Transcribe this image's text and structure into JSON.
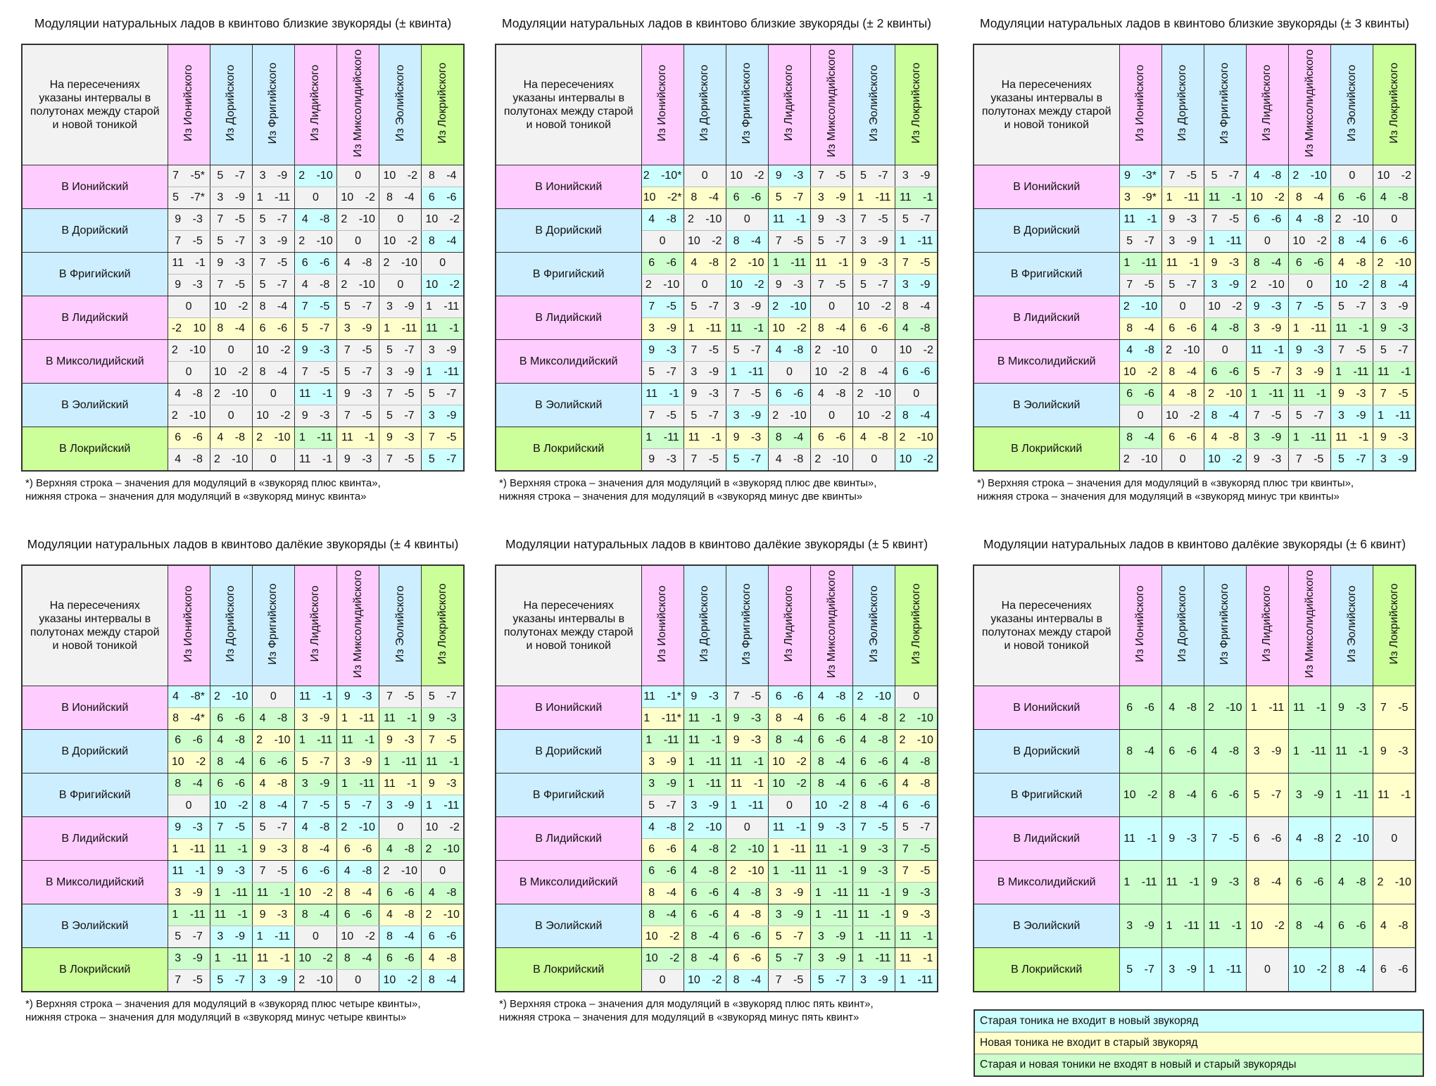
{
  "colors": {
    "pink": "#ffccff",
    "blue": "#cceeff",
    "green_header": "#ccff99",
    "g": "#f2f2f2",
    "c": "#ccffff",
    "y": "#ffffcc",
    "n": "#ccffcc"
  },
  "corner_text": "На пересечениях указаны интервалы в полутонах между старой и новой тоникой",
  "columns": [
    {
      "label": "Из Ионийского",
      "color": "pink"
    },
    {
      "label": "Из Дорийского",
      "color": "blue"
    },
    {
      "label": "Из Фригийского",
      "color": "blue"
    },
    {
      "label": "Из Лидийского",
      "color": "pink"
    },
    {
      "label": "Из Миксолидийского",
      "color": "pink"
    },
    {
      "label": "Из Эолийского",
      "color": "blue"
    },
    {
      "label": "Из Локрийского",
      "color": "green_header"
    }
  ],
  "row_labels": [
    {
      "label": "В Ионийский",
      "color": "pink"
    },
    {
      "label": "В Дорийский",
      "color": "blue"
    },
    {
      "label": "В Фригийский",
      "color": "blue"
    },
    {
      "label": "В Лидийский",
      "color": "pink"
    },
    {
      "label": "В Миксолидийский",
      "color": "pink"
    },
    {
      "label": "В Эолийский",
      "color": "blue"
    },
    {
      "label": "В Локрийский",
      "color": "green_header"
    }
  ],
  "tables": [
    {
      "title": "Модуляции натуральных ладов в квинтово близкие звукоряды (± квинта)",
      "footnote": [
        "*) Верхняя строка – значения для модуляций в «звукоряд плюс квинта»,",
        "нижняя строка – значения для модуляций в «звукоряд минус квинта»"
      ],
      "rows": [
        {
          "top": [
            "7 -5*",
            "5 -7",
            "3 -9",
            "2 -10",
            "0",
            "10 -2",
            "8 -4"
          ],
          "tc": "gggcggg",
          "bottom": [
            "5 -7*",
            "3 -9",
            "1 -11",
            "0",
            "10 -2",
            "8 -4",
            "6 -6"
          ],
          "bc": "ggggggc"
        },
        {
          "top": [
            "9 -3",
            "7 -5",
            "5 -7",
            "4 -8",
            "2 -10",
            "0",
            "10 -2"
          ],
          "tc": "gggcggg",
          "bottom": [
            "7 -5",
            "5 -7",
            "3 -9",
            "2 -10",
            "0",
            "10 -2",
            "8 -4"
          ],
          "bc": "ggggggc"
        },
        {
          "top": [
            "11 -1",
            "9 -3",
            "7 -5",
            "6 -6",
            "4 -8",
            "2 -10",
            "0"
          ],
          "tc": "gggcggg",
          "bottom": [
            "9 -3",
            "7 -5",
            "5 -7",
            "4 -8",
            "2 -10",
            "0",
            "10 -2"
          ],
          "bc": "ggggggc"
        },
        {
          "top": [
            "0",
            "10 -2",
            "8 -4",
            "7 -5",
            "5 -7",
            "3 -9",
            "1 -11"
          ],
          "tc": "gggcggg",
          "bottom": [
            "-2 10",
            "8 -4",
            "6 -6",
            "5 -7",
            "3 -9",
            "1 -11",
            "11 -1"
          ],
          "bc": "yyyyyyn"
        },
        {
          "top": [
            "2 -10",
            "0",
            "10 -2",
            "9 -3",
            "7 -5",
            "5 -7",
            "3 -9"
          ],
          "tc": "gggcggg",
          "bottom": [
            "0",
            "10 -2",
            "8 -4",
            "7 -5",
            "5 -7",
            "3 -9",
            "1 -11"
          ],
          "bc": "ggggggc"
        },
        {
          "top": [
            "4 -8",
            "2 -10",
            "0",
            "11 -1",
            "9 -3",
            "7 -5",
            "5 -7"
          ],
          "tc": "gggcggg",
          "bottom": [
            "2 -10",
            "0",
            "10 -2",
            "9 -3",
            "7 -5",
            "5 -7",
            "3 -9"
          ],
          "bc": "ggggggc"
        },
        {
          "top": [
            "6 -6",
            "4 -8",
            "2 -10",
            "1 -11",
            "11 -1",
            "9 -3",
            "7 -5"
          ],
          "tc": "yyynyyy",
          "bottom": [
            "4 -8",
            "2 -10",
            "0",
            "11 -1",
            "9 -3",
            "7 -5",
            "5 -7"
          ],
          "bc": "ggggggc"
        }
      ]
    },
    {
      "title": "Модуляции натуральных ладов в квинтово близкие звукоряды (± 2 квинты)",
      "footnote": [
        "*) Верхняя строка – значения для модуляций в «звукоряд плюс две квинты»,",
        "нижняя строка – значения для модуляций в «звукоряд минус две квинты»"
      ],
      "rows": [
        {
          "top": [
            "2 -10*",
            "0",
            "10 -2",
            "9 -3",
            "7 -5",
            "5 -7",
            "3 -9"
          ],
          "tc": "cggcggg",
          "bottom": [
            "10 -2*",
            "8 -4",
            "6 -6",
            "5 -7",
            "3 -9",
            "1 -11",
            "11 -1"
          ],
          "bc": "yynyyyn"
        },
        {
          "top": [
            "4 -8",
            "2 -10",
            "0",
            "11 -1",
            "9 -3",
            "7 -5",
            "5 -7"
          ],
          "tc": "cggcggg",
          "bottom": [
            "0",
            "10 -2",
            "8 -4",
            "7 -5",
            "5 -7",
            "3 -9",
            "1 -11"
          ],
          "bc": "ggcgggc"
        },
        {
          "top": [
            "6 -6",
            "4 -8",
            "2 -10",
            "1 -11",
            "11 -1",
            "9 -3",
            "7 -5"
          ],
          "tc": "nyynyyy",
          "bottom": [
            "2 -10",
            "0",
            "10 -2",
            "9 -3",
            "7 -5",
            "5 -7",
            "3 -9"
          ],
          "bc": "ggcgggc"
        },
        {
          "top": [
            "7 -5",
            "5 -7",
            "3 -9",
            "2 -10",
            "0",
            "10 -2",
            "8 -4"
          ],
          "tc": "cggcggg",
          "bottom": [
            "3 -9",
            "1 -11",
            "11 -1",
            "10 -2",
            "8 -4",
            "6 -6",
            "4 -8"
          ],
          "bc": "yynyyyn"
        },
        {
          "top": [
            "9 -3",
            "7 -5",
            "5 -7",
            "4 -8",
            "2 -10",
            "0",
            "10 -2"
          ],
          "tc": "cggcggg",
          "bottom": [
            "5 -7",
            "3 -9",
            "1 -11",
            "0",
            "10 -2",
            "8 -4",
            "6 -6"
          ],
          "bc": "ggcgggc"
        },
        {
          "top": [
            "11 -1",
            "9 -3",
            "7 -5",
            "6 -6",
            "4 -8",
            "2 -10",
            "0"
          ],
          "tc": "cggcggg",
          "bottom": [
            "7 -5",
            "5 -7",
            "3 -9",
            "2 -10",
            "0",
            "10 -2",
            "8 -4"
          ],
          "bc": "ggcgggc"
        },
        {
          "top": [
            "1 -11",
            "11 -1",
            "9 -3",
            "8 -4",
            "6 -6",
            "4 -8",
            "2 -10"
          ],
          "tc": "nyynyyy",
          "bottom": [
            "9 -3",
            "7 -5",
            "5 -7",
            "4 -8",
            "2 -10",
            "0",
            "10 -2"
          ],
          "bc": "ggcgggc"
        }
      ]
    },
    {
      "title": "Модуляции натуральных ладов в квинтово близкие звукоряды (± 3 квинты)",
      "footnote": [
        "*) Верхняя строка – значения для модуляций в «звукоряд плюс три квинты»,",
        "нижняя строка – значения для модуляций в «звукоряд минус три квинты»"
      ],
      "rows": [
        {
          "top": [
            "9 -3*",
            "7 -5",
            "5 -7",
            "4 -8",
            "2 -10",
            "0",
            "10 -2"
          ],
          "tc": "cggccgg",
          "bottom": [
            "3 -9*",
            "1 -11",
            "11 -1",
            "10 -2",
            "8 -4",
            "6 -6",
            "4 -8"
          ],
          "bc": "yynyynn"
        },
        {
          "top": [
            "11 -1",
            "9 -3",
            "7 -5",
            "6 -6",
            "4 -8",
            "2 -10",
            "0"
          ],
          "tc": "cggccgg",
          "bottom": [
            "5 -7",
            "3 -9",
            "1 -11",
            "0",
            "10 -2",
            "8 -4",
            "6 -6"
          ],
          "bc": "ggcggcc"
        },
        {
          "top": [
            "1 -11",
            "11 -1",
            "9 -3",
            "8 -4",
            "6 -6",
            "4 -8",
            "2 -10"
          ],
          "tc": "nyynnyy",
          "bottom": [
            "7 -5",
            "5 -7",
            "3 -9",
            "2 -10",
            "0",
            "10 -2",
            "8 -4"
          ],
          "bc": "ggcggcc"
        },
        {
          "top": [
            "2 -10",
            "0",
            "10 -2",
            "9 -3",
            "7 -5",
            "5 -7",
            "3 -9"
          ],
          "tc": "cggccgg",
          "bottom": [
            "8 -4",
            "6 -6",
            "4 -8",
            "3 -9",
            "1 -11",
            "11 -1",
            "9 -3"
          ],
          "bc": "yynyynn"
        },
        {
          "top": [
            "4 -8",
            "2 -10",
            "0",
            "11 -1",
            "9 -3",
            "7 -5",
            "5 -7"
          ],
          "tc": "cggccgg",
          "bottom": [
            "10 -2",
            "8 -4",
            "6 -6",
            "5 -7",
            "3 -9",
            "1 -11",
            "11 -1"
          ],
          "bc": "yynyynn"
        },
        {
          "top": [
            "6 -6",
            "4 -8",
            "2 -10",
            "1 -11",
            "11 -1",
            "9 -3",
            "7 -5"
          ],
          "tc": "nyynnyy",
          "bottom": [
            "0",
            "10 -2",
            "8 -4",
            "7 -5",
            "5 -7",
            "3 -9",
            "1 -11"
          ],
          "bc": "ggcggcc"
        },
        {
          "top": [
            "8 -4",
            "6 -6",
            "4 -8",
            "3 -9",
            "1 -11",
            "11 -1",
            "9 -3"
          ],
          "tc": "nyynnyy",
          "bottom": [
            "2 -10",
            "0",
            "10 -2",
            "9 -3",
            "7 -5",
            "5 -7",
            "3 -9"
          ],
          "bc": "ggcggcc"
        }
      ]
    },
    {
      "title": "Модуляции натуральных ладов в квинтово далёкие звукоряды (± 4 квинты)",
      "footnote": [
        "*) Верхняя строка – значения для модуляций в «звукоряд плюс четыре квинты»,",
        "нижняя строка – значения для модуляций в «звукоряд минус четыре квинты»"
      ],
      "rows": [
        {
          "top": [
            "4 -8*",
            "2 -10",
            "0",
            "11 -1",
            "9 -3",
            "7 -5",
            "5 -7"
          ],
          "tc": "ccgccgg",
          "bottom": [
            "8 -4*",
            "6 -6",
            "4 -8",
            "3 -9",
            "1 -11",
            "11 -1",
            "9 -3"
          ],
          "bc": "ynnyynn"
        },
        {
          "top": [
            "6 -6",
            "4 -8",
            "2 -10",
            "1 -11",
            "11 -1",
            "9 -3",
            "7 -5"
          ],
          "tc": "nnynnyy",
          "bottom": [
            "10 -2",
            "8 -4",
            "6 -6",
            "5 -7",
            "3 -9",
            "1 -11",
            "11 -1"
          ],
          "bc": "ynnyynn"
        },
        {
          "top": [
            "8 -4",
            "6 -6",
            "4 -8",
            "3 -9",
            "1 -11",
            "11 -1",
            "9 -3"
          ],
          "tc": "nnynnyy",
          "bottom": [
            "0",
            "10 -2",
            "8 -4",
            "7 -5",
            "5 -7",
            "3 -9",
            "1 -11"
          ],
          "bc": "gcccccc"
        },
        {
          "top": [
            "9 -3",
            "7 -5",
            "5 -7",
            "4 -8",
            "2 -10",
            "0",
            "10 -2"
          ],
          "tc": "ccgccgg",
          "bottom": [
            "1 -11",
            "11 -1",
            "9 -3",
            "8 -4",
            "6 -6",
            "4 -8",
            "2 -10"
          ],
          "bc": "ynyyynn"
        },
        {
          "top": [
            "11 -1",
            "9 -3",
            "7 -5",
            "6 -6",
            "4 -8",
            "2 -10",
            "0"
          ],
          "tc": "ccgccgg",
          "bottom": [
            "3 -9",
            "1 -11",
            "11 -1",
            "10 -2",
            "8 -4",
            "6 -6",
            "4 -8"
          ],
          "bc": "ynnyynn"
        },
        {
          "top": [
            "1 -11",
            "11 -1",
            "9 -3",
            "8 -4",
            "6 -6",
            "4 -8",
            "2 -10"
          ],
          "tc": "nnynnyy",
          "bottom": [
            "5 -7",
            "3 -9",
            "1 -11",
            "0",
            "10 -2",
            "8 -4",
            "6 -6"
          ],
          "bc": "gccggcc"
        },
        {
          "top": [
            "3 -9",
            "1 -11",
            "11 -1",
            "10 -2",
            "8 -4",
            "6 -6",
            "4 -8"
          ],
          "tc": "nnynnny",
          "bottom": [
            "7 -5",
            "5 -7",
            "3 -9",
            "2 -10",
            "0",
            "10 -2",
            "8 -4"
          ],
          "bc": "gccggcc"
        }
      ]
    },
    {
      "title": "Модуляции натуральных ладов в квинтово далёкие звукоряды (± 5 квинт)",
      "footnote": [
        "*) Верхняя строка – значения для модуляций в «звукоряд плюс пять квинт»,",
        "нижняя строка – значения для модуляций в «звукоряд минус пять квинт»"
      ],
      "rows": [
        {
          "top": [
            "11 -1*",
            "9 -3",
            "7 -5",
            "6 -6",
            "4 -8",
            "2 -10",
            "0"
          ],
          "tc": "ccgcccg",
          "bottom": [
            "1 -11*",
            "11 -1",
            "9 -3",
            "8 -4",
            "6 -6",
            "4 -8",
            "2 -10"
          ],
          "bc": "ynnynnn"
        },
        {
          "top": [
            "1 -11",
            "11 -1",
            "9 -3",
            "8 -4",
            "6 -6",
            "4 -8",
            "2 -10"
          ],
          "tc": "nnynnny",
          "bottom": [
            "3 -9",
            "1 -11",
            "11 -1",
            "10 -2",
            "8 -4",
            "6 -6",
            "4 -8"
          ],
          "bc": "ynnynnn"
        },
        {
          "top": [
            "3 -9",
            "1 -11",
            "11 -1",
            "10 -2",
            "8 -4",
            "6 -6",
            "4 -8"
          ],
          "tc": "nnynnny",
          "bottom": [
            "5 -7",
            "3 -9",
            "1 -11",
            "0",
            "10 -2",
            "8 -4",
            "6 -6"
          ],
          "bc": "gccgccc"
        },
        {
          "top": [
            "4 -8",
            "2 -10",
            "0",
            "11 -1",
            "9 -3",
            "7 -5",
            "5 -7"
          ],
          "tc": "ccgcccg",
          "bottom": [
            "6 -6",
            "4 -8",
            "2 -10",
            "1 -11",
            "11 -1",
            "9 -3",
            "7 -5"
          ],
          "bc": "ynnynnn"
        },
        {
          "top": [
            "6 -6",
            "4 -8",
            "2 -10",
            "1 -11",
            "11 -1",
            "9 -3",
            "7 -5"
          ],
          "tc": "nnynnny",
          "bottom": [
            "8 -4",
            "6 -6",
            "4 -8",
            "3 -9",
            "1 -11",
            "11 -1",
            "9 -3"
          ],
          "bc": "ynnynnn"
        },
        {
          "top": [
            "8 -4",
            "6 -6",
            "4 -8",
            "3 -9",
            "1 -11",
            "11 -1",
            "9 -3"
          ],
          "tc": "nnynnny",
          "bottom": [
            "10 -2",
            "8 -4",
            "6 -6",
            "5 -7",
            "3 -9",
            "1 -11",
            "11 -1"
          ],
          "bc": "ynnynnn"
        },
        {
          "top": [
            "10 -2",
            "8 -4",
            "6 -6",
            "5 -7",
            "3 -9",
            "1 -11",
            "11 -1"
          ],
          "tc": "nnynnny",
          "bottom": [
            "0",
            "10 -2",
            "8 -4",
            "7 -5",
            "5 -7",
            "3 -9",
            "1 -11"
          ],
          "bc": "gccgccc"
        }
      ]
    },
    {
      "title": "Модуляции натуральных ладов в квинтово далёкие звукоряды (± 6 квинт)",
      "single": true,
      "rows": [
        {
          "top": [
            "6 -6",
            "4 -8",
            "2 -10",
            "1 -11",
            "11 -1",
            "9 -3",
            "7 -5"
          ],
          "tc": "nnnynny"
        },
        {
          "top": [
            "8 -4",
            "6 -6",
            "4 -8",
            "3 -9",
            "1 -11",
            "11 -1",
            "9 -3"
          ],
          "tc": "nnnynny"
        },
        {
          "top": [
            "10 -2",
            "8 -4",
            "6 -6",
            "5 -7",
            "3 -9",
            "1 -11",
            "11 -1"
          ],
          "tc": "nnnynny"
        },
        {
          "top": [
            "11 -1",
            "9 -3",
            "7 -5",
            "6 -6",
            "4 -8",
            "2 -10",
            "0"
          ],
          "tc": "cccgccg"
        },
        {
          "top": [
            "1 -11",
            "11 -1",
            "9 -3",
            "8 -4",
            "6 -6",
            "4 -8",
            "2 -10"
          ],
          "tc": "nnnynny"
        },
        {
          "top": [
            "3 -9",
            "1 -11",
            "11 -1",
            "10 -2",
            "8 -4",
            "6 -6",
            "4 -8"
          ],
          "tc": "nnnynny"
        },
        {
          "top": [
            "5 -7",
            "3 -9",
            "1 -11",
            "0",
            "10 -2",
            "8 -4",
            "6 -6"
          ],
          "tc": "cccgccg"
        }
      ]
    }
  ],
  "legend": [
    {
      "label": "Старая тоника не входит в новый звукоряд",
      "color": "c"
    },
    {
      "label": "Новая тоника не входит в старый звукоряд",
      "color": "y"
    },
    {
      "label": "Старая и новая тоники не входят в новый и старый звукоряды",
      "color": "n"
    }
  ]
}
